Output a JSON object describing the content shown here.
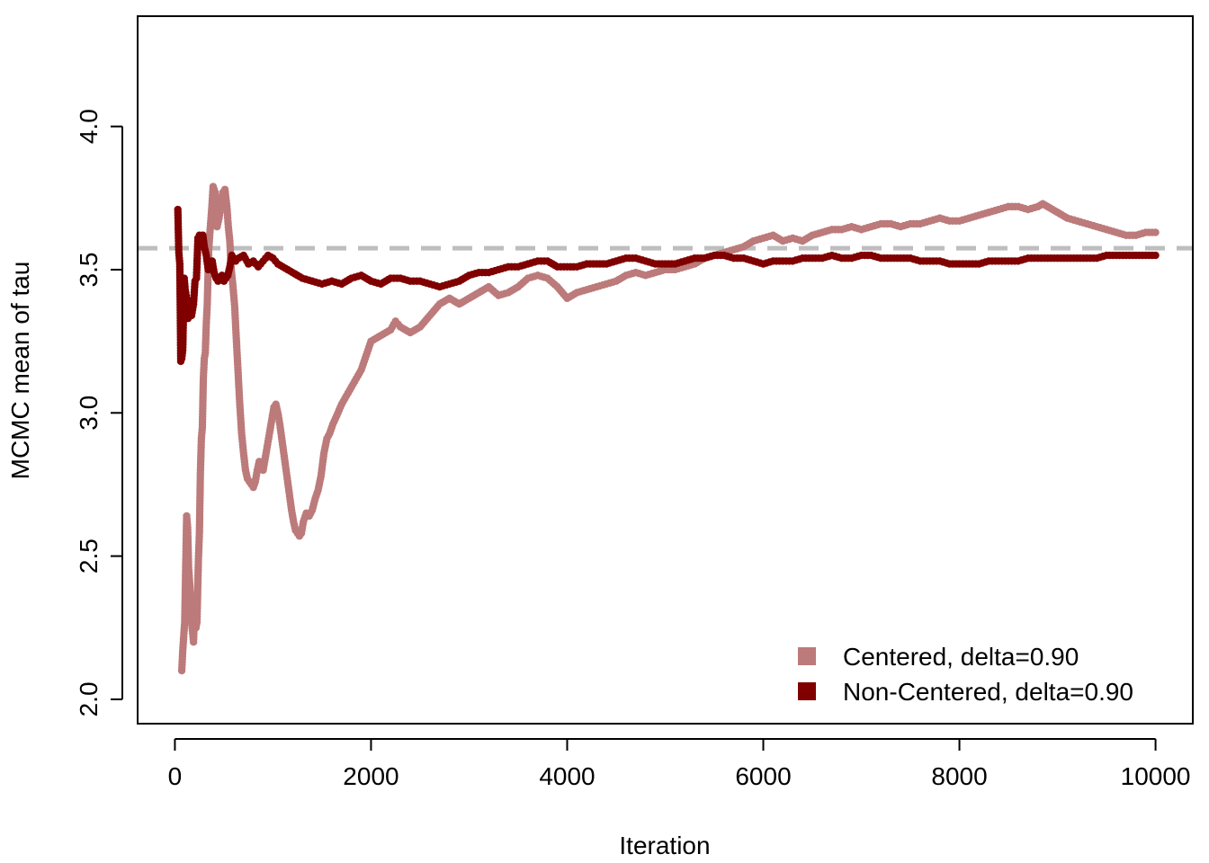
{
  "chart_data": {
    "type": "scatter",
    "title": "",
    "xlabel": "Iteration",
    "ylabel": "MCMC mean of tau",
    "xlim": [
      -380,
      10380
    ],
    "ylim": [
      1.915,
      4.385
    ],
    "x_ticks": [
      0,
      2000,
      4000,
      6000,
      8000,
      10000
    ],
    "x_tick_labels": [
      "0",
      "2000",
      "4000",
      "6000",
      "8000",
      "10000"
    ],
    "y_ticks": [
      2.0,
      2.5,
      3.0,
      3.5,
      4.0
    ],
    "y_tick_labels": [
      "2.0",
      "2.5",
      "3.0",
      "3.5",
      "4.0"
    ],
    "grid": false,
    "legend_position": "bottom-right",
    "reference_line": {
      "y": 3.575,
      "style": "dashed",
      "color": "#bebebe"
    },
    "series": [
      {
        "name": "Centered, delta=0.90",
        "color": "#bc7a7a",
        "points": [
          [
            70,
            2.1
          ],
          [
            80,
            2.17
          ],
          [
            100,
            2.27
          ],
          [
            120,
            2.64
          ],
          [
            130,
            2.6
          ],
          [
            140,
            2.46
          ],
          [
            160,
            2.36
          ],
          [
            170,
            2.27
          ],
          [
            190,
            2.2
          ],
          [
            200,
            2.3
          ],
          [
            215,
            2.25
          ],
          [
            225,
            2.27
          ],
          [
            240,
            2.49
          ],
          [
            250,
            2.58
          ],
          [
            260,
            2.79
          ],
          [
            270,
            2.91
          ],
          [
            280,
            2.95
          ],
          [
            290,
            3.12
          ],
          [
            300,
            3.19
          ],
          [
            310,
            3.21
          ],
          [
            320,
            3.31
          ],
          [
            330,
            3.38
          ],
          [
            345,
            3.57
          ],
          [
            355,
            3.62
          ],
          [
            375,
            3.71
          ],
          [
            390,
            3.79
          ],
          [
            410,
            3.77
          ],
          [
            430,
            3.65
          ],
          [
            450,
            3.68
          ],
          [
            470,
            3.73
          ],
          [
            490,
            3.77
          ],
          [
            510,
            3.78
          ],
          [
            530,
            3.72
          ],
          [
            545,
            3.65
          ],
          [
            560,
            3.6
          ],
          [
            575,
            3.5
          ],
          [
            590,
            3.45
          ],
          [
            610,
            3.37
          ],
          [
            620,
            3.3
          ],
          [
            640,
            3.17
          ],
          [
            660,
            3.04
          ],
          [
            680,
            2.93
          ],
          [
            700,
            2.86
          ],
          [
            720,
            2.8
          ],
          [
            740,
            2.77
          ],
          [
            760,
            2.76
          ],
          [
            780,
            2.75
          ],
          [
            800,
            2.74
          ],
          [
            820,
            2.76
          ],
          [
            840,
            2.8
          ],
          [
            860,
            2.83
          ],
          [
            880,
            2.81
          ],
          [
            900,
            2.8
          ],
          [
            930,
            2.86
          ],
          [
            960,
            2.92
          ],
          [
            990,
            2.98
          ],
          [
            1010,
            3.02
          ],
          [
            1030,
            3.03
          ],
          [
            1050,
            3.0
          ],
          [
            1070,
            2.96
          ],
          [
            1090,
            2.91
          ],
          [
            1110,
            2.86
          ],
          [
            1130,
            2.81
          ],
          [
            1150,
            2.76
          ],
          [
            1170,
            2.71
          ],
          [
            1190,
            2.66
          ],
          [
            1210,
            2.62
          ],
          [
            1230,
            2.59
          ],
          [
            1250,
            2.58
          ],
          [
            1270,
            2.57
          ],
          [
            1290,
            2.58
          ],
          [
            1310,
            2.62
          ],
          [
            1340,
            2.65
          ],
          [
            1370,
            2.64
          ],
          [
            1400,
            2.66
          ],
          [
            1430,
            2.7
          ],
          [
            1460,
            2.73
          ],
          [
            1490,
            2.78
          ],
          [
            1520,
            2.86
          ],
          [
            1550,
            2.91
          ],
          [
            1580,
            2.93
          ],
          [
            1610,
            2.96
          ],
          [
            1650,
            2.99
          ],
          [
            1700,
            3.03
          ],
          [
            1750,
            3.06
          ],
          [
            1800,
            3.09
          ],
          [
            1850,
            3.12
          ],
          [
            1900,
            3.15
          ],
          [
            1950,
            3.2
          ],
          [
            2000,
            3.25
          ],
          [
            2100,
            3.27
          ],
          [
            2200,
            3.29
          ],
          [
            2250,
            3.32
          ],
          [
            2300,
            3.3
          ],
          [
            2400,
            3.28
          ],
          [
            2500,
            3.3
          ],
          [
            2600,
            3.34
          ],
          [
            2700,
            3.38
          ],
          [
            2800,
            3.4
          ],
          [
            2900,
            3.38
          ],
          [
            3000,
            3.4
          ],
          [
            3100,
            3.42
          ],
          [
            3200,
            3.44
          ],
          [
            3300,
            3.41
          ],
          [
            3400,
            3.42
          ],
          [
            3500,
            3.44
          ],
          [
            3600,
            3.47
          ],
          [
            3700,
            3.48
          ],
          [
            3800,
            3.47
          ],
          [
            3900,
            3.44
          ],
          [
            4000,
            3.4
          ],
          [
            4100,
            3.42
          ],
          [
            4200,
            3.43
          ],
          [
            4300,
            3.44
          ],
          [
            4400,
            3.45
          ],
          [
            4500,
            3.46
          ],
          [
            4600,
            3.48
          ],
          [
            4700,
            3.49
          ],
          [
            4800,
            3.48
          ],
          [
            4900,
            3.49
          ],
          [
            5000,
            3.5
          ],
          [
            5100,
            3.5
          ],
          [
            5200,
            3.51
          ],
          [
            5300,
            3.52
          ],
          [
            5400,
            3.54
          ],
          [
            5500,
            3.55
          ],
          [
            5600,
            3.56
          ],
          [
            5700,
            3.57
          ],
          [
            5800,
            3.58
          ],
          [
            5900,
            3.6
          ],
          [
            6000,
            3.61
          ],
          [
            6100,
            3.62
          ],
          [
            6200,
            3.6
          ],
          [
            6300,
            3.61
          ],
          [
            6400,
            3.6
          ],
          [
            6500,
            3.62
          ],
          [
            6600,
            3.63
          ],
          [
            6700,
            3.64
          ],
          [
            6800,
            3.64
          ],
          [
            6900,
            3.65
          ],
          [
            7000,
            3.64
          ],
          [
            7100,
            3.65
          ],
          [
            7200,
            3.66
          ],
          [
            7300,
            3.66
          ],
          [
            7400,
            3.65
          ],
          [
            7500,
            3.66
          ],
          [
            7600,
            3.66
          ],
          [
            7700,
            3.67
          ],
          [
            7800,
            3.68
          ],
          [
            7900,
            3.67
          ],
          [
            8000,
            3.67
          ],
          [
            8100,
            3.68
          ],
          [
            8200,
            3.69
          ],
          [
            8300,
            3.7
          ],
          [
            8400,
            3.71
          ],
          [
            8500,
            3.72
          ],
          [
            8600,
            3.72
          ],
          [
            8700,
            3.71
          ],
          [
            8800,
            3.72
          ],
          [
            8850,
            3.73
          ],
          [
            8900,
            3.72
          ],
          [
            9000,
            3.7
          ],
          [
            9100,
            3.68
          ],
          [
            9200,
            3.67
          ],
          [
            9300,
            3.66
          ],
          [
            9400,
            3.65
          ],
          [
            9500,
            3.64
          ],
          [
            9600,
            3.63
          ],
          [
            9700,
            3.62
          ],
          [
            9800,
            3.62
          ],
          [
            9900,
            3.63
          ],
          [
            10000,
            3.63
          ]
        ]
      },
      {
        "name": "Non-Centered, delta=0.90",
        "color": "#800000",
        "points": [
          [
            30,
            3.71
          ],
          [
            40,
            3.56
          ],
          [
            50,
            3.52
          ],
          [
            60,
            3.18
          ],
          [
            70,
            3.19
          ],
          [
            80,
            3.22
          ],
          [
            95,
            3.47
          ],
          [
            105,
            3.43
          ],
          [
            120,
            3.4
          ],
          [
            135,
            3.33
          ],
          [
            150,
            3.35
          ],
          [
            170,
            3.34
          ],
          [
            190,
            3.38
          ],
          [
            205,
            3.46
          ],
          [
            220,
            3.47
          ],
          [
            235,
            3.61
          ],
          [
            250,
            3.62
          ],
          [
            270,
            3.61
          ],
          [
            285,
            3.62
          ],
          [
            300,
            3.58
          ],
          [
            320,
            3.55
          ],
          [
            340,
            3.5
          ],
          [
            360,
            3.52
          ],
          [
            380,
            3.53
          ],
          [
            400,
            3.49
          ],
          [
            420,
            3.47
          ],
          [
            440,
            3.46
          ],
          [
            460,
            3.47
          ],
          [
            480,
            3.48
          ],
          [
            500,
            3.46
          ],
          [
            520,
            3.47
          ],
          [
            540,
            3.48
          ],
          [
            560,
            3.51
          ],
          [
            580,
            3.55
          ],
          [
            600,
            3.54
          ],
          [
            620,
            3.53
          ],
          [
            650,
            3.54
          ],
          [
            700,
            3.55
          ],
          [
            750,
            3.52
          ],
          [
            800,
            3.53
          ],
          [
            850,
            3.51
          ],
          [
            900,
            3.53
          ],
          [
            950,
            3.55
          ],
          [
            1000,
            3.54
          ],
          [
            1050,
            3.52
          ],
          [
            1100,
            3.51
          ],
          [
            1200,
            3.49
          ],
          [
            1300,
            3.47
          ],
          [
            1400,
            3.46
          ],
          [
            1500,
            3.45
          ],
          [
            1600,
            3.46
          ],
          [
            1700,
            3.45
          ],
          [
            1800,
            3.47
          ],
          [
            1900,
            3.48
          ],
          [
            2000,
            3.46
          ],
          [
            2100,
            3.45
          ],
          [
            2200,
            3.47
          ],
          [
            2300,
            3.47
          ],
          [
            2400,
            3.46
          ],
          [
            2500,
            3.46
          ],
          [
            2600,
            3.45
          ],
          [
            2700,
            3.44
          ],
          [
            2800,
            3.45
          ],
          [
            2900,
            3.46
          ],
          [
            3000,
            3.48
          ],
          [
            3100,
            3.49
          ],
          [
            3200,
            3.49
          ],
          [
            3300,
            3.5
          ],
          [
            3400,
            3.51
          ],
          [
            3500,
            3.51
          ],
          [
            3600,
            3.52
          ],
          [
            3700,
            3.53
          ],
          [
            3800,
            3.53
          ],
          [
            3900,
            3.51
          ],
          [
            4000,
            3.51
          ],
          [
            4100,
            3.51
          ],
          [
            4200,
            3.52
          ],
          [
            4300,
            3.52
          ],
          [
            4400,
            3.52
          ],
          [
            4500,
            3.53
          ],
          [
            4600,
            3.54
          ],
          [
            4700,
            3.54
          ],
          [
            4800,
            3.53
          ],
          [
            4900,
            3.52
          ],
          [
            5000,
            3.52
          ],
          [
            5100,
            3.52
          ],
          [
            5200,
            3.53
          ],
          [
            5300,
            3.54
          ],
          [
            5400,
            3.54
          ],
          [
            5500,
            3.55
          ],
          [
            5600,
            3.55
          ],
          [
            5700,
            3.54
          ],
          [
            5800,
            3.54
          ],
          [
            5900,
            3.53
          ],
          [
            6000,
            3.52
          ],
          [
            6100,
            3.53
          ],
          [
            6200,
            3.53
          ],
          [
            6300,
            3.53
          ],
          [
            6400,
            3.54
          ],
          [
            6500,
            3.54
          ],
          [
            6600,
            3.54
          ],
          [
            6700,
            3.55
          ],
          [
            6800,
            3.54
          ],
          [
            6900,
            3.54
          ],
          [
            7000,
            3.55
          ],
          [
            7100,
            3.55
          ],
          [
            7200,
            3.54
          ],
          [
            7300,
            3.54
          ],
          [
            7400,
            3.54
          ],
          [
            7500,
            3.54
          ],
          [
            7600,
            3.53
          ],
          [
            7700,
            3.53
          ],
          [
            7800,
            3.53
          ],
          [
            7900,
            3.52
          ],
          [
            8000,
            3.52
          ],
          [
            8100,
            3.52
          ],
          [
            8200,
            3.52
          ],
          [
            8300,
            3.53
          ],
          [
            8400,
            3.53
          ],
          [
            8500,
            3.53
          ],
          [
            8600,
            3.53
          ],
          [
            8700,
            3.54
          ],
          [
            8800,
            3.54
          ],
          [
            8900,
            3.54
          ],
          [
            9000,
            3.54
          ],
          [
            9100,
            3.54
          ],
          [
            9200,
            3.54
          ],
          [
            9300,
            3.54
          ],
          [
            9400,
            3.54
          ],
          [
            9500,
            3.55
          ],
          [
            9600,
            3.55
          ],
          [
            9700,
            3.55
          ],
          [
            9800,
            3.55
          ],
          [
            9900,
            3.55
          ],
          [
            10000,
            3.55
          ]
        ]
      }
    ]
  }
}
